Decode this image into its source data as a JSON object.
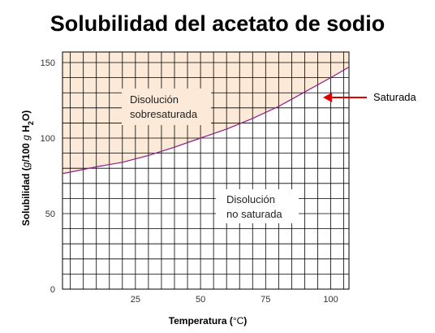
{
  "chart_data": {
    "type": "line",
    "title": "Solubilidad del acetato de sodio",
    "xlabel": "Temperatura (°C)",
    "ylabel_parts": [
      "Solubilidad (",
      "g",
      "/100 ",
      "g",
      " H",
      "2",
      "O)"
    ],
    "xlim": [
      -3,
      107
    ],
    "ylim": [
      0,
      157
    ],
    "xticks": [
      25,
      50,
      75,
      100
    ],
    "yticks": [
      0,
      50,
      100,
      150
    ],
    "grid": true,
    "series": [
      {
        "name": "Saturada",
        "color": "#8b1a8b",
        "x": [
          -3,
          0,
          10,
          20,
          30,
          40,
          50,
          60,
          70,
          80,
          90,
          100,
          107
        ],
        "y": [
          76.5,
          77.5,
          81,
          84,
          88.5,
          94,
          100,
          106,
          113,
          121,
          130.5,
          140,
          147
        ]
      }
    ],
    "regions": {
      "above": {
        "label_lines": [
          "Disolución",
          "sobresaturada"
        ],
        "fill": "#fce9d7"
      },
      "below": {
        "label_lines": [
          "Disolución",
          "no saturada"
        ]
      }
    },
    "annotation": {
      "text": "Saturada",
      "arrow_color": "#e00000"
    }
  }
}
